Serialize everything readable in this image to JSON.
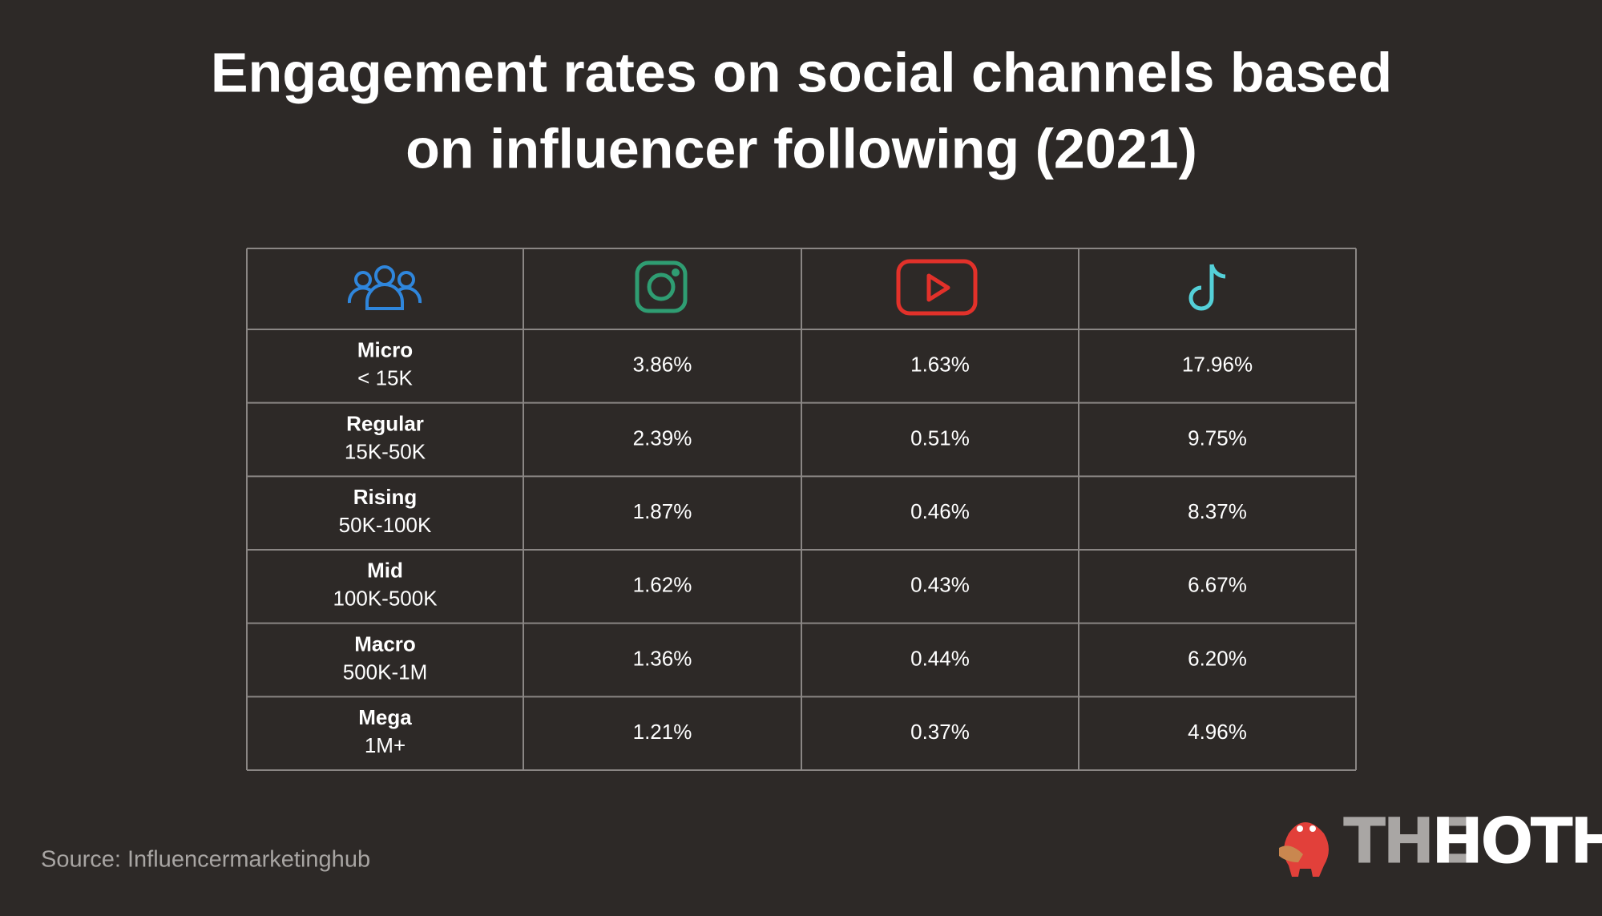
{
  "title": [
    "Engagement rates on social channels based",
    "on influencer following (2021)"
  ],
  "table": {
    "rows": [
      [
        "Micro",
        "< 15K",
        "3.86%",
        "1.63%",
        "17.96%"
      ],
      [
        "Regular",
        "15K-50K",
        "2.39%",
        "0.51%",
        "9.75%"
      ],
      [
        "Rising",
        "50K-100K",
        "1.87%",
        "0.46%",
        "8.37%"
      ],
      [
        "Mid",
        "100K-500K",
        "1.62%",
        "0.43%",
        "6.67%"
      ],
      [
        "Macro",
        "500K-1M",
        "1.36%",
        "0.44%",
        "6.20%"
      ],
      [
        "Mega",
        "1M+",
        "1.21%",
        "0.37%",
        "4.96%"
      ]
    ]
  },
  "source": "Source: Influencermarketinghub",
  "logo": [
    "THE",
    "HOTH"
  ]
}
